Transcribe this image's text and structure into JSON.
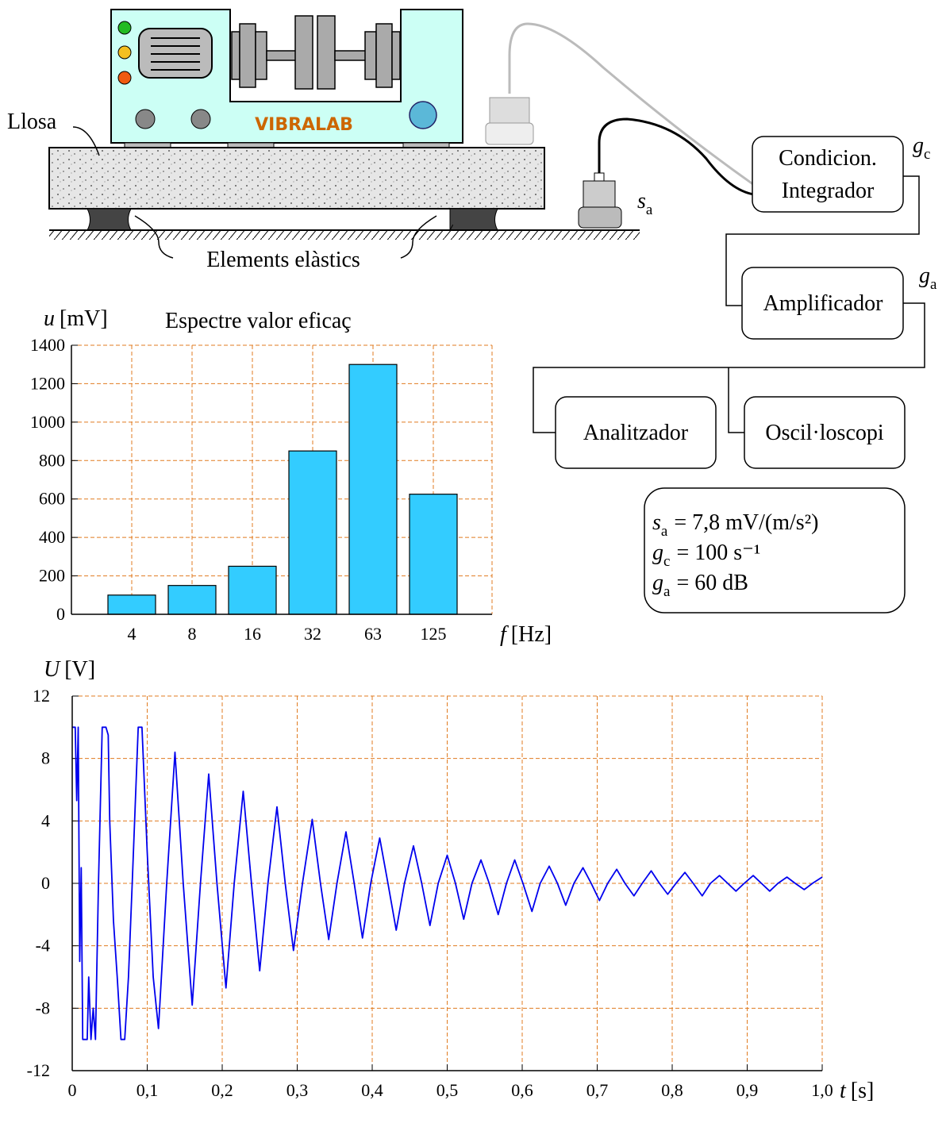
{
  "diagram": {
    "slab_label": "Llosa",
    "elastic_label": "Elements elàstics",
    "brand": "VIBRALAB",
    "sensor": {
      "symbol": "s",
      "sub": "a"
    },
    "conditioner": {
      "line1": "Condicion.",
      "line2": "Integrador",
      "symbol": "g",
      "sub": "c"
    },
    "amplifier": {
      "label": "Amplificador",
      "symbol": "g",
      "sub": "a"
    },
    "analyzer": "Analitzador",
    "oscilloscope": "Oscil·loscopi",
    "specs": [
      {
        "symbol": "s",
        "sub": "a",
        "rest": "= 7,8 mV/(m/s²)"
      },
      {
        "symbol": "g",
        "sub": "c",
        "rest": "= 100 s⁻¹"
      },
      {
        "symbol": "g",
        "sub": "a",
        "rest": "= 60 dB"
      }
    ]
  },
  "chart_data": [
    {
      "type": "bar",
      "title": "Espectre valor eficaç",
      "y_label": {
        "symbol": "u",
        "unit": "[mV]"
      },
      "x_label": {
        "symbol": "f",
        "unit": "[Hz]"
      },
      "categories": [
        "4",
        "8",
        "16",
        "32",
        "63",
        "125"
      ],
      "values": [
        100,
        150,
        250,
        850,
        1300,
        625
      ],
      "color": "#33ccff",
      "grid": true,
      "grid_color": "#e07b20",
      "ylim": [
        0,
        1400
      ],
      "yticks": [
        0,
        200,
        400,
        600,
        800,
        1000,
        1200,
        1400
      ]
    },
    {
      "type": "line",
      "y_label": {
        "symbol": "U",
        "unit": "[V]"
      },
      "x_label": {
        "symbol": "t",
        "unit": "[s]"
      },
      "x": [
        0,
        0.004,
        0.006,
        0.008,
        0.01,
        0.012,
        0.014,
        0.02,
        0.022,
        0.025,
        0.028,
        0.031,
        0.035,
        0.04,
        0.045,
        0.048,
        0.05,
        0.055,
        0.06,
        0.065,
        0.07,
        0.075,
        0.08,
        0.088,
        0.093,
        0.1,
        0.108,
        0.115,
        0.126,
        0.137,
        0.148,
        0.16,
        0.171,
        0.182,
        0.193,
        0.205,
        0.216,
        0.228,
        0.239,
        0.25,
        0.261,
        0.273,
        0.284,
        0.295,
        0.307,
        0.32,
        0.331,
        0.342,
        0.353,
        0.365,
        0.376,
        0.387,
        0.398,
        0.41,
        0.421,
        0.432,
        0.443,
        0.455,
        0.466,
        0.477,
        0.488,
        0.5,
        0.511,
        0.522,
        0.533,
        0.545,
        0.556,
        0.568,
        0.579,
        0.59,
        0.601,
        0.613,
        0.624,
        0.636,
        0.647,
        0.658,
        0.669,
        0.681,
        0.692,
        0.703,
        0.714,
        0.726,
        0.737,
        0.749,
        0.76,
        0.772,
        0.783,
        0.794,
        0.805,
        0.817,
        0.828,
        0.84,
        0.851,
        0.863,
        0.874,
        0.885,
        0.896,
        0.908,
        0.919,
        0.93,
        0.941,
        0.953,
        0.964,
        0.976,
        0.987,
        1.0
      ],
      "series": [
        {
          "color": "#0000ee",
          "values": [
            10,
            10,
            5.3,
            10,
            -5,
            1,
            -10,
            -10,
            -6,
            -10,
            -8,
            -10,
            0,
            10,
            10,
            9.5,
            4,
            -2.4,
            -6,
            -10,
            -10,
            -6,
            0,
            10,
            10,
            2,
            -6,
            -9.3,
            0,
            8.4,
            0,
            -7.8,
            0,
            7.0,
            0,
            -6.7,
            0,
            5.9,
            0,
            -5.6,
            0,
            4.9,
            0,
            -4.3,
            0,
            4.1,
            0,
            -3.6,
            0,
            3.3,
            0,
            -3.5,
            0,
            2.9,
            0,
            -3.0,
            0,
            2.4,
            0,
            -2.7,
            0,
            1.8,
            0,
            -2.3,
            0,
            1.5,
            0,
            -2.0,
            0,
            1.5,
            0,
            -1.8,
            0,
            1.1,
            0,
            -1.4,
            0,
            1.0,
            0,
            -1.1,
            0,
            0.9,
            0,
            -0.8,
            0,
            0.8,
            0,
            -0.7,
            0,
            0.7,
            0,
            -0.8,
            0,
            0.5,
            0,
            -0.5,
            0,
            0.5,
            0,
            -0.5,
            0,
            0.4,
            0,
            -0.4,
            0,
            0.4
          ]
        }
      ],
      "grid": true,
      "grid_color": "#e07b20",
      "xlim": [
        0,
        1.0
      ],
      "xticks": [
        0,
        {
          "value": 0.1,
          "label": "0,1"
        },
        {
          "value": 0.2,
          "label": "0,2"
        },
        {
          "value": 0.3,
          "label": "0,3"
        },
        {
          "value": 0.4,
          "label": "0,4"
        },
        {
          "value": 0.5,
          "label": "0,5"
        },
        {
          "value": 0.6,
          "label": "0,6"
        },
        {
          "value": 0.7,
          "label": "0,7"
        },
        {
          "value": 0.8,
          "label": "0,8"
        },
        {
          "value": 0.9,
          "label": "0,9"
        },
        {
          "value": 1.0,
          "label": "1,0"
        }
      ],
      "ylim": [
        -12,
        12
      ],
      "yticks": [
        -12,
        -8,
        -4,
        0,
        4,
        8,
        12
      ]
    }
  ]
}
